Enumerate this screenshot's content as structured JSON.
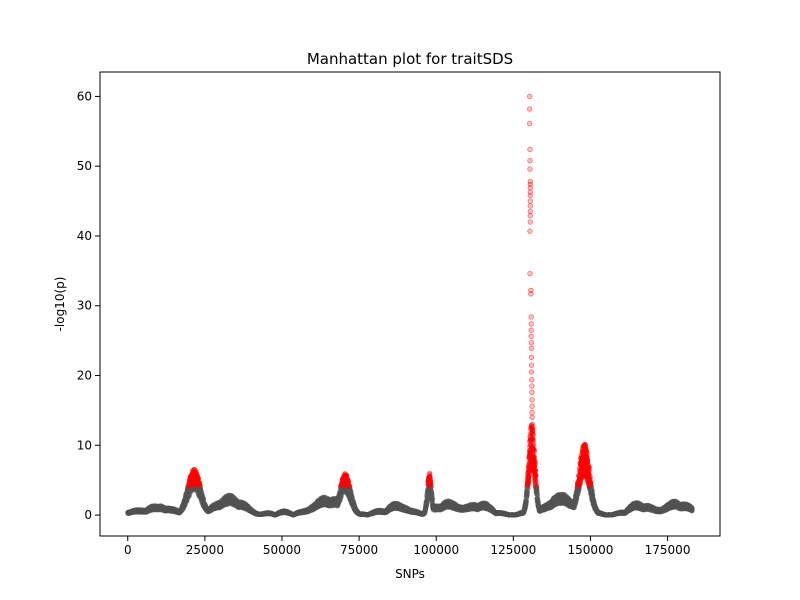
{
  "chart_data": {
    "type": "scatter",
    "title": "Manhattan plot for traitSDS",
    "xlabel": "SNPs",
    "ylabel": "-log10(p)",
    "xlim": [
      -9000,
      192000
    ],
    "ylim": [
      -3,
      63.5
    ],
    "xticks": [
      0,
      25000,
      50000,
      75000,
      100000,
      125000,
      150000,
      175000
    ],
    "yticks": [
      0,
      10,
      20,
      30,
      40,
      50,
      60
    ],
    "grid": false,
    "legend": "none",
    "colors": {
      "background": "#555555",
      "significant": "#ff0000",
      "axis": "#000000"
    },
    "significance_threshold": 4,
    "x_max": 183000,
    "peaks": [
      {
        "x": 21500,
        "width": 3000,
        "peak": 6.0,
        "top": 6.2
      },
      {
        "x": 70500,
        "width": 2500,
        "peak": 5.4,
        "top": 5.6
      },
      {
        "x": 97800,
        "width": 1000,
        "peak": 5.5,
        "top": 5.7
      },
      {
        "x": 131000,
        "width": 1500,
        "peak": 12.0,
        "top": 12.2
      },
      {
        "x": 148000,
        "width": 2500,
        "peak": 9.5,
        "top": 9.7
      }
    ],
    "lead_snp_points": [
      {
        "x": 130300,
        "y": 60.0
      },
      {
        "x": 130300,
        "y": 58.2
      },
      {
        "x": 130300,
        "y": 56.1
      },
      {
        "x": 130400,
        "y": 52.4
      },
      {
        "x": 130400,
        "y": 50.8
      },
      {
        "x": 130400,
        "y": 49.6
      },
      {
        "x": 130500,
        "y": 47.8
      },
      {
        "x": 130500,
        "y": 47.4
      },
      {
        "x": 130500,
        "y": 46.9
      },
      {
        "x": 130500,
        "y": 46.3
      },
      {
        "x": 130500,
        "y": 45.8
      },
      {
        "x": 130500,
        "y": 45.0
      },
      {
        "x": 130500,
        "y": 44.3
      },
      {
        "x": 130500,
        "y": 43.5
      },
      {
        "x": 130500,
        "y": 42.9
      },
      {
        "x": 130500,
        "y": 42.0
      },
      {
        "x": 130400,
        "y": 40.7
      },
      {
        "x": 130400,
        "y": 34.6
      },
      {
        "x": 130700,
        "y": 32.2
      },
      {
        "x": 130700,
        "y": 31.7
      },
      {
        "x": 130800,
        "y": 28.4
      },
      {
        "x": 130800,
        "y": 27.4
      },
      {
        "x": 130800,
        "y": 26.5
      },
      {
        "x": 130800,
        "y": 25.6
      },
      {
        "x": 130900,
        "y": 24.7
      },
      {
        "x": 130900,
        "y": 23.9
      },
      {
        "x": 130900,
        "y": 22.6
      },
      {
        "x": 130900,
        "y": 21.5
      },
      {
        "x": 130900,
        "y": 20.5
      },
      {
        "x": 131000,
        "y": 19.4
      },
      {
        "x": 131000,
        "y": 18.5
      },
      {
        "x": 131000,
        "y": 17.6
      },
      {
        "x": 131100,
        "y": 16.5
      },
      {
        "x": 131100,
        "y": 15.6
      },
      {
        "x": 131100,
        "y": 14.7
      },
      {
        "x": 131100,
        "y": 14.0
      },
      {
        "x": 131200,
        "y": 13.0
      },
      {
        "x": 131300,
        "y": 11.6
      },
      {
        "x": 131400,
        "y": 10.8
      },
      {
        "x": 131500,
        "y": 9.5
      },
      {
        "x": 131600,
        "y": 8.5
      },
      {
        "x": 131700,
        "y": 7.8
      },
      {
        "x": 131800,
        "y": 7.0
      },
      {
        "x": 131900,
        "y": 6.2
      },
      {
        "x": 132000,
        "y": 5.4
      }
    ],
    "point_count": 12000,
    "seed": 7
  }
}
